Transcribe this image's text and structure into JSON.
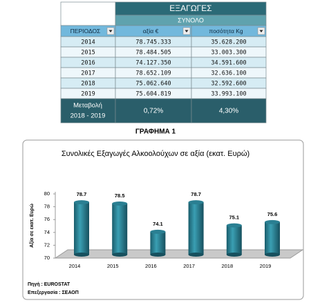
{
  "table": {
    "header": "ΕΞΑΓΩΓΕΣ",
    "subheader": "ΣΥΝΟΛΟ",
    "columns": [
      "ΠΕΡΙΟΔΟΣ",
      "αξία €",
      "ποσότητα Kg"
    ],
    "rows": [
      [
        "2014",
        "78.745.333",
        "35.628.200"
      ],
      [
        "2015",
        "78.484.505",
        "33.003.300"
      ],
      [
        "2016",
        "74.127.350",
        "34.591.600"
      ],
      [
        "2017",
        "78.652.109",
        "32.636.100"
      ],
      [
        "2018",
        "75.062.640",
        "32.592.600"
      ],
      [
        "2019",
        "75.604.819",
        "33.993.100"
      ]
    ],
    "footer": {
      "label": [
        "Μεταβολή",
        "2018 - 2019"
      ],
      "values": [
        "0,72%",
        "4,30%"
      ]
    }
  },
  "figure_caption": "ΓΡΑΦΗΜΑ  1",
  "chart_data": {
    "type": "bar",
    "title": "Συνολικές Εξαγωγές Αλκοολούχων σε αξία (εκατ. Ευρώ)",
    "y_label": "Αξία σε εκατ. Ευρώ",
    "categories": [
      "2014",
      "2015",
      "2016",
      "2017",
      "2018",
      "2019"
    ],
    "values": [
      78.7,
      78.5,
      74.1,
      78.7,
      75.1,
      75.6
    ],
    "color": "#2a7f92",
    "ylim": [
      70,
      80
    ],
    "yticks": [
      70,
      72,
      74,
      76,
      78,
      80
    ]
  },
  "notes": [
    "Πηγή : EUROSTAT",
    "Επεξεργασία : ΣΕΑΟΠ"
  ]
}
